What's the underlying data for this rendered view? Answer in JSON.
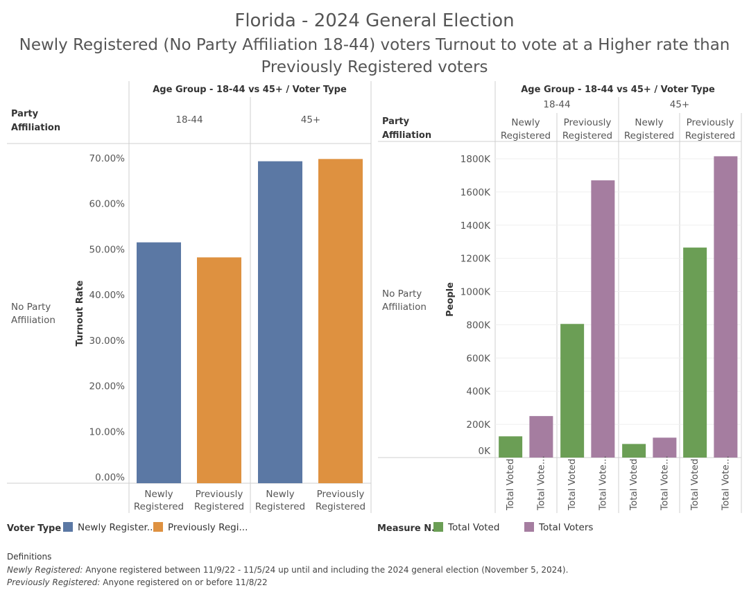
{
  "title": "Florida - 2024 General Election",
  "subtitle_line1": "Newly Registered (No Party Affiliation 18-44) voters Turnout to vote at a Higher rate than",
  "subtitle_line2": "Previously Registered voters",
  "left": {
    "header": "Age Group - 18-44 vs 45+ / Voter Type",
    "row_header_1": "Party",
    "row_header_2": "Affiliation",
    "row_label_1": "No Party",
    "row_label_2": "Affiliation",
    "group_labels": [
      "18-44",
      "45+"
    ],
    "category_labels": [
      [
        "Newly",
        "Registered"
      ],
      [
        "Previously",
        "Registered"
      ],
      [
        "Newly",
        "Registered"
      ],
      [
        "Previously",
        "Registered"
      ]
    ]
  },
  "right": {
    "header": "Age Group - 18-44 vs 45+ / Voter Type",
    "row_header_1": "Party",
    "row_header_2": "Affiliation",
    "row_label_1": "No Party",
    "row_label_2": "Affiliation",
    "group_labels": [
      "18-44",
      "45+"
    ],
    "subgroup_labels": [
      [
        "Newly",
        "Registered"
      ],
      [
        "Previously",
        "Registered"
      ],
      [
        "Newly",
        "Registered"
      ],
      [
        "Previously",
        "Registered"
      ]
    ]
  },
  "legend_left": {
    "title": "Voter Type",
    "items": [
      {
        "label": "Newly Register...",
        "color": "#5b78a4"
      },
      {
        "label": "Previously Regi...",
        "color": "#de9140"
      }
    ]
  },
  "legend_right": {
    "title": "Measure N...",
    "items": [
      {
        "label": "Total Voted",
        "color": "#6b9e55"
      },
      {
        "label": "Total Voters",
        "color": "#a57da0"
      }
    ]
  },
  "definitions": {
    "heading": "Definitions",
    "line1_term": "Newly Registered:",
    "line1_text": " Anyone registered between 11/9/22 - 11/5/24 up until and including the 2024 general election (November 5, 2024).",
    "line2_term": "Previously Registered:",
    "line2_text": " Anyone registered on or before 11/8/22"
  },
  "chart_data": [
    {
      "type": "bar",
      "ylabel": "Turnout Rate",
      "ylim": [
        0,
        72
      ],
      "ticks": [
        0,
        10,
        20,
        30,
        40,
        50,
        60,
        70
      ],
      "tick_labels": [
        "0.00%",
        "10.00%",
        "20.00%",
        "30.00%",
        "40.00%",
        "50.00%",
        "60.00%",
        "70.00%"
      ],
      "categories": [
        "18-44 Newly Registered",
        "18-44 Previously Registered",
        "45+ Newly Registered",
        "45+ Previously Registered"
      ],
      "values": [
        51.5,
        48.2,
        69.3,
        69.8
      ],
      "colors": [
        "#5b78a4",
        "#de9140",
        "#5b78a4",
        "#de9140"
      ]
    },
    {
      "type": "bar",
      "ylabel": "People",
      "ylim": [
        0,
        1820000
      ],
      "ticks": [
        0,
        200000,
        400000,
        600000,
        800000,
        1000000,
        1200000,
        1400000,
        1600000,
        1800000
      ],
      "tick_labels": [
        "0K",
        "200K",
        "400K",
        "600K",
        "800K",
        "1000K",
        "1200K",
        "1400K",
        "1600K",
        "1800K"
      ],
      "measures": [
        "Total Voted",
        "Total Voters"
      ],
      "x_labels": [
        "Total Voted",
        "Total Vote...",
        "Total Voted",
        "Total Vote...",
        "Total Voted",
        "Total Vote...",
        "Total Voted",
        "Total Vote..."
      ],
      "series": [
        {
          "name": "Total Voted",
          "values": [
            128000,
            805000,
            82000,
            1265000
          ]
        },
        {
          "name": "Total Voters",
          "values": [
            250000,
            1670000,
            120000,
            1815000
          ]
        }
      ],
      "colors": [
        "#6b9e55",
        "#a57da0"
      ]
    }
  ]
}
